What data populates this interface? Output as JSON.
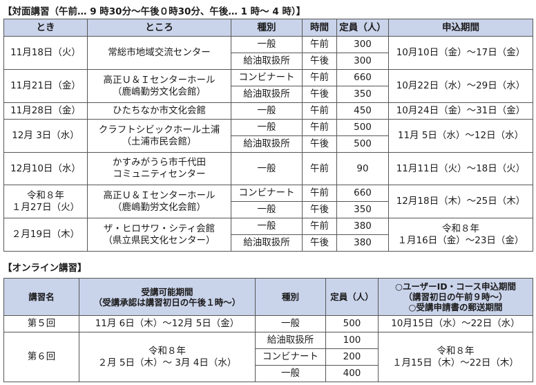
{
  "section1": {
    "title": "【対面講習（午前… 9 時30分～午後０時30分、午後… 1 時～ 4 時）】",
    "headers": {
      "date": "とき",
      "place": "ところ",
      "type": "種別",
      "time": "時間",
      "capacity": "定員（人）",
      "period": "申込期間"
    },
    "rows": [
      {
        "date": "11月18日（火）",
        "place": [
          "常総市地域交流センター"
        ],
        "period": [
          "10月10日（金）～17日（金）"
        ],
        "sessions": [
          {
            "type": "一般",
            "time": "午前",
            "capacity": "300"
          },
          {
            "type": "給油取扱所",
            "time": "午後",
            "capacity": "300"
          }
        ]
      },
      {
        "date": "11月21日（金）",
        "place": [
          "高正Ｕ＆Ｉセンターホール",
          "（鹿嶋勤労文化会館）"
        ],
        "period": [
          "10月22日（水）～29日（水）"
        ],
        "sessions": [
          {
            "type": "コンビナート",
            "time": "午前",
            "capacity": "660"
          },
          {
            "type": "給油取扱所",
            "time": "午後",
            "capacity": "350"
          }
        ]
      },
      {
        "date": "11月28日（金）",
        "place": [
          "ひたちなか市文化会館"
        ],
        "period": [
          "10月24日（金）～31日（金）"
        ],
        "sessions": [
          {
            "type": "一般",
            "time": "午前",
            "capacity": "450"
          }
        ]
      },
      {
        "date": "12月 3日（水）",
        "place": [
          "クラフトシビックホール土浦",
          "（土浦市民会館）"
        ],
        "period": [
          "11月 5日（水）～12日（水）"
        ],
        "sessions": [
          {
            "type": "一般",
            "time": "午前",
            "capacity": "500"
          },
          {
            "type": "給油取扱所",
            "time": "午後",
            "capacity": "500"
          }
        ]
      },
      {
        "date": "12月10日（水）",
        "place": [
          "かすみがうら市千代田",
          "コミュニティセンター"
        ],
        "period": [
          "11月11日（火）～18日（火）"
        ],
        "tall": true,
        "sessions": [
          {
            "type": "一般",
            "time": "午前",
            "capacity": "90"
          }
        ]
      },
      {
        "date": "令和８年\n１月27日（火）",
        "place": [
          "高正Ｕ＆Ｉセンターホール",
          "（鹿嶋勤労文化会館）"
        ],
        "period": [
          "12月18日（木）～25日（木）"
        ],
        "sessions": [
          {
            "type": "コンビナート",
            "time": "午前",
            "capacity": "660"
          },
          {
            "type": "一般",
            "time": "午後",
            "capacity": "350"
          }
        ]
      },
      {
        "date": "２月19日（木）",
        "place": [
          "ザ・ヒロサワ・シティ会館",
          "（県立県民文化センター）"
        ],
        "period": [
          "令和８年",
          "１月16日（金）～23日（金）"
        ],
        "sessions": [
          {
            "type": "一般",
            "time": "午前",
            "capacity": "380"
          },
          {
            "type": "給油取扱所",
            "time": "午後",
            "capacity": "380"
          }
        ]
      }
    ]
  },
  "section2": {
    "title": "【オンライン講習】",
    "headers": {
      "name": "講習名",
      "period": [
        "受講可能期間",
        "（受講承認は講習初日の午後１時～）"
      ],
      "type": "種別",
      "capacity": "定員（人）",
      "apply": [
        "○ユーザーID・コース申込期間",
        "（講習初日の午前９時～）",
        "○受講申請書の郵送期間"
      ]
    },
    "rows": [
      {
        "name": "第５回",
        "period": [
          "11月 6日（木）～12月 5日（金）"
        ],
        "apply": [
          "10月15日（水）～22日（水）"
        ],
        "sessions": [
          {
            "type": "一般",
            "capacity": "500"
          }
        ]
      },
      {
        "name": "第６回",
        "period": [
          "令和８年",
          "２月 5日（木）～ 3月 4日（水）"
        ],
        "apply": [
          "令和８年",
          "１月15日（木）～22日（木）"
        ],
        "sessions": [
          {
            "type": "給油取扱所",
            "capacity": "100"
          },
          {
            "type": "コンビナート",
            "capacity": "200"
          },
          {
            "type": "一般",
            "capacity": "400"
          }
        ]
      }
    ]
  }
}
